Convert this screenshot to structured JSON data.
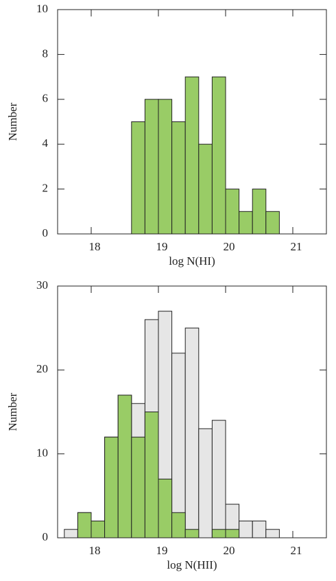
{
  "chart_data": [
    {
      "type": "histogram",
      "xlabel": "log N(HI)",
      "ylabel": "Number",
      "bins": [
        18.6,
        18.8,
        19.0,
        19.2,
        19.4,
        19.6,
        19.8,
        20.0,
        20.2,
        20.4,
        20.6,
        20.8
      ],
      "series": [
        {
          "color": "#99cc66",
          "values": [
            5,
            6,
            6,
            5,
            7,
            4,
            7,
            2,
            1,
            2,
            1
          ]
        }
      ],
      "xlim": [
        17.5,
        21.5
      ],
      "xticks": [
        18,
        19,
        20,
        21
      ],
      "ylim": [
        0,
        10
      ],
      "yticks": [
        0,
        2,
        4,
        6,
        8,
        10
      ]
    },
    {
      "type": "histogram",
      "xlabel": "log N(HII)",
      "ylabel": "Number",
      "bins": [
        17.6,
        17.8,
        18.0,
        18.2,
        18.4,
        18.6,
        18.8,
        19.0,
        19.2,
        19.4,
        19.6,
        19.8,
        20.0,
        20.2,
        20.4,
        20.6,
        20.8
      ],
      "series": [
        {
          "color": "#e6e6e6",
          "values": [
            1,
            3,
            2,
            12,
            17,
            16,
            26,
            27,
            22,
            25,
            13,
            14,
            4,
            2,
            2,
            1
          ]
        },
        {
          "color": "#99cc66",
          "values": [
            0,
            3,
            2,
            12,
            17,
            12,
            15,
            7,
            3,
            1,
            0,
            1,
            1,
            0,
            0,
            0
          ]
        }
      ],
      "xlim": [
        17.5,
        21.5
      ],
      "xticks": [
        18,
        19,
        20,
        21
      ],
      "ylim": [
        0,
        30
      ],
      "yticks": [
        0,
        10,
        20,
        30
      ]
    }
  ]
}
